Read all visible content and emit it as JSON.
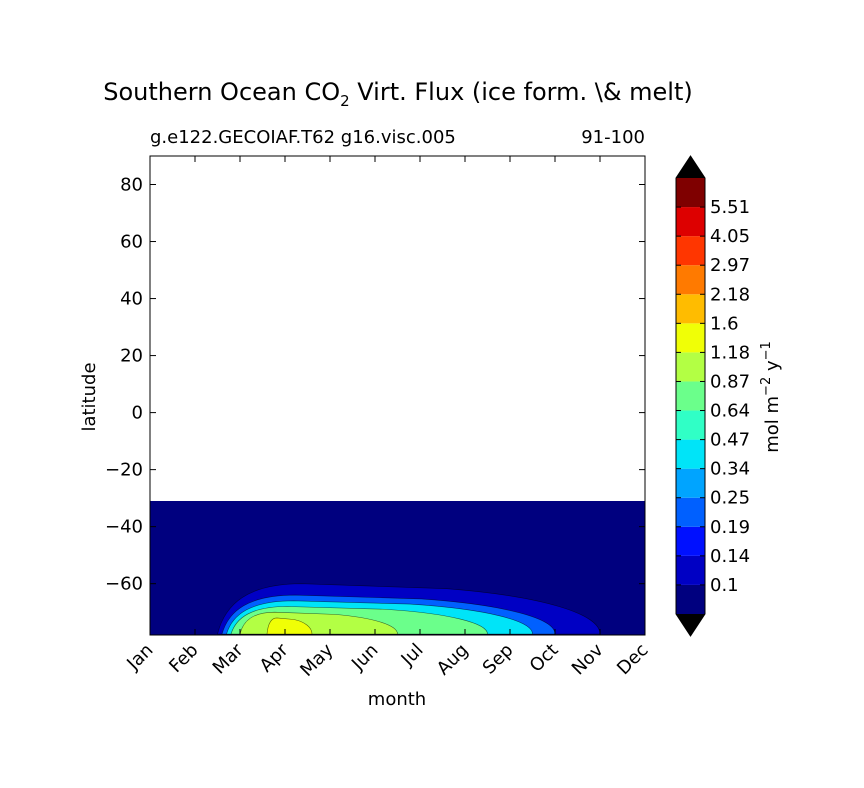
{
  "chart_data": {
    "type": "contourf",
    "title": {
      "prefix": "Southern Ocean CO",
      "subscript": "2",
      "suffix": " Virt. Flux (ice form. \\& melt)"
    },
    "subtitle_left": "g.e122.GECOIAF.T62 g16.visc.005",
    "subtitle_right": "91-100",
    "xlabel": "month",
    "ylabel": "latitude",
    "x_ticks": [
      "Jan",
      "Feb",
      "Mar",
      "Apr",
      "May",
      "Jun",
      "Jul",
      "Aug",
      "Sep",
      "Oct",
      "Nov",
      "Dec"
    ],
    "y_ticks": [
      80,
      60,
      40,
      20,
      0,
      -20,
      -40,
      -60
    ],
    "y_tick_labels": [
      "80",
      "60",
      "40",
      "20",
      "0",
      "−20",
      "−40",
      "−60"
    ],
    "xlim": [
      0,
      11
    ],
    "ylim": [
      -78,
      90
    ],
    "data_domain_lat": [
      -78,
      -31
    ],
    "colorbar": {
      "label": "mol m",
      "label_sup1": "−2",
      "label_mid": " y",
      "label_sup2": "−1",
      "levels": [
        "0.1",
        "0.14",
        "0.19",
        "0.25",
        "0.34",
        "0.47",
        "0.64",
        "0.87",
        "1.18",
        "1.6",
        "2.18",
        "2.97",
        "4.05",
        "5.51"
      ],
      "colors": [
        "#00007f",
        "#0000c4",
        "#0010ff",
        "#0060ff",
        "#00a4ff",
        "#00e4f8",
        "#30ffc6",
        "#6bff8b",
        "#b3ff44",
        "#f0ff06",
        "#ffbc00",
        "#ff7a00",
        "#ff3600",
        "#dd0000",
        "#7f0000"
      ],
      "extend_low": "#000000",
      "extend_high": "#000000"
    },
    "field_description": [
      {
        "level_index": 1,
        "lat_top": -60,
        "month_start": 1.5,
        "month_end": 10.0
      },
      {
        "level_index": 3,
        "lat_top": -64,
        "month_start": 1.6,
        "month_end": 9.0
      },
      {
        "level_index": 5,
        "lat_top": -66,
        "month_start": 1.7,
        "month_end": 8.5
      },
      {
        "level_index": 7,
        "lat_top": -68,
        "month_start": 1.8,
        "month_end": 7.5
      },
      {
        "level_index": 8,
        "lat_top": -70,
        "month_start": 2.0,
        "month_end": 5.5
      },
      {
        "level_index": 9,
        "lat_top": -72,
        "month_start": 2.6,
        "month_end": 3.6
      }
    ]
  }
}
